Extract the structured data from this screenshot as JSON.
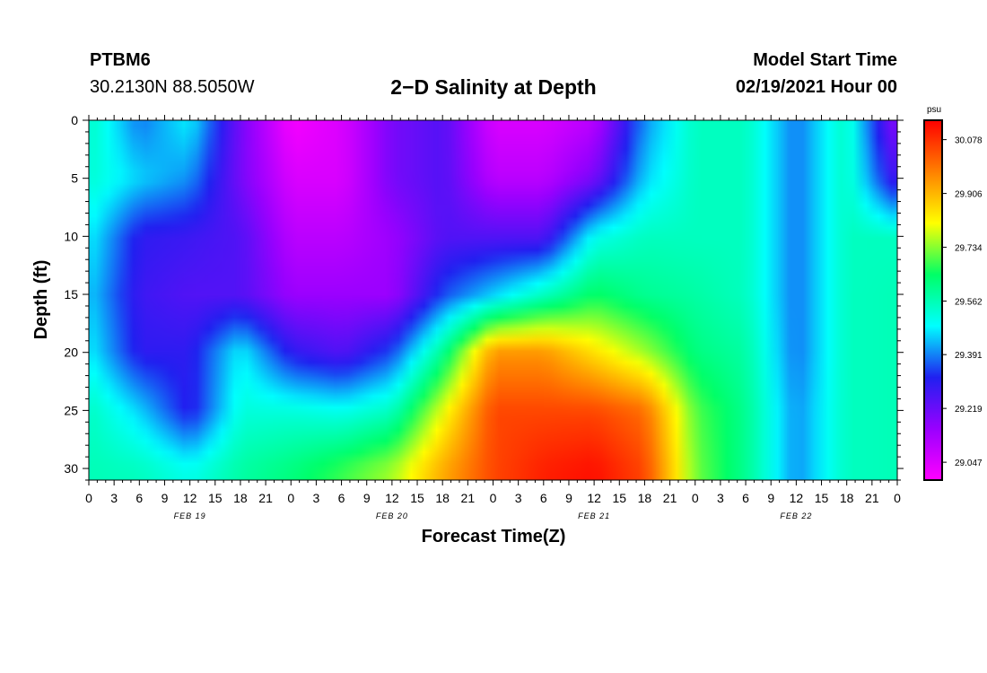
{
  "header": {
    "station": "PTBM6",
    "coords": "30.2130N 88.5050W",
    "title": "2−D Salinity at Depth",
    "model_start_label": "Model Start Time",
    "model_start_value": "02/19/2021 Hour 00"
  },
  "chart_data": {
    "type": "heatmap",
    "title": "2−D Salinity at Depth",
    "xlabel": "Forecast Time(Z)",
    "ylabel": "Depth (ft)",
    "x_hours_range": [
      0,
      96
    ],
    "ylim": [
      0,
      31
    ],
    "y_inverted": true,
    "x_tick_labels": [
      "0",
      "3",
      "6",
      "9",
      "12",
      "15",
      "18",
      "21",
      "0",
      "3",
      "6",
      "9",
      "12",
      "15",
      "18",
      "21",
      "0",
      "3",
      "6",
      "9",
      "12",
      "15",
      "18",
      "21",
      "0",
      "3",
      "6",
      "9",
      "12",
      "15",
      "18",
      "21",
      "0"
    ],
    "y_ticks": [
      0,
      5,
      10,
      15,
      20,
      25,
      30
    ],
    "date_labels": [
      {
        "label": "FEB 19",
        "hour": 12
      },
      {
        "label": "FEB 20",
        "hour": 36
      },
      {
        "label": "FEB 21",
        "hour": 60
      },
      {
        "label": "FEB 22",
        "hour": 84
      }
    ],
    "colorbar": {
      "units": "psu",
      "min": 28.99,
      "max": 30.14,
      "labels": [
        30.078,
        29.906,
        29.734,
        29.562,
        29.391,
        29.219,
        29.047
      ],
      "colors": [
        "#ff00ff",
        "#9900ff",
        "#2020f0",
        "#00ffff",
        "#00ff66",
        "#ffff00",
        "#ff8000",
        "#ff0000"
      ]
    },
    "sample_hours": [
      0,
      6,
      12,
      18,
      24,
      30,
      36,
      42,
      48,
      54,
      60,
      66,
      72,
      78,
      84,
      90,
      96
    ],
    "sample_depths": [
      0,
      5,
      10,
      15,
      20,
      25,
      30
    ],
    "values": [
      [
        29.55,
        29.38,
        29.48,
        29.2,
        29.0,
        29.05,
        29.2,
        29.25,
        29.05,
        29.05,
        29.1,
        29.4,
        29.55,
        29.55,
        29.38,
        29.55,
        29.15
      ],
      [
        29.53,
        29.45,
        29.4,
        29.2,
        29.05,
        29.05,
        29.2,
        29.25,
        29.1,
        29.1,
        29.2,
        29.45,
        29.55,
        29.55,
        29.38,
        29.55,
        29.25
      ],
      [
        29.48,
        29.3,
        29.28,
        29.25,
        29.1,
        29.1,
        29.15,
        29.25,
        29.25,
        29.25,
        29.5,
        29.55,
        29.55,
        29.55,
        29.38,
        29.55,
        29.55
      ],
      [
        29.45,
        29.28,
        29.25,
        29.25,
        29.15,
        29.15,
        29.15,
        29.35,
        29.45,
        29.55,
        29.65,
        29.6,
        29.58,
        29.55,
        29.38,
        29.55,
        29.56
      ],
      [
        29.48,
        29.3,
        29.3,
        29.48,
        29.3,
        29.25,
        29.35,
        29.6,
        29.95,
        29.95,
        29.85,
        29.75,
        29.62,
        29.58,
        29.38,
        29.55,
        29.56
      ],
      [
        29.55,
        29.45,
        29.3,
        29.52,
        29.52,
        29.5,
        29.55,
        29.8,
        30.05,
        30.05,
        30.05,
        30.0,
        29.7,
        29.6,
        29.4,
        29.55,
        29.56
      ],
      [
        29.56,
        29.55,
        29.5,
        29.58,
        29.62,
        29.68,
        29.75,
        29.92,
        30.05,
        30.1,
        30.12,
        30.05,
        29.72,
        29.6,
        29.4,
        29.55,
        29.56
      ]
    ]
  }
}
